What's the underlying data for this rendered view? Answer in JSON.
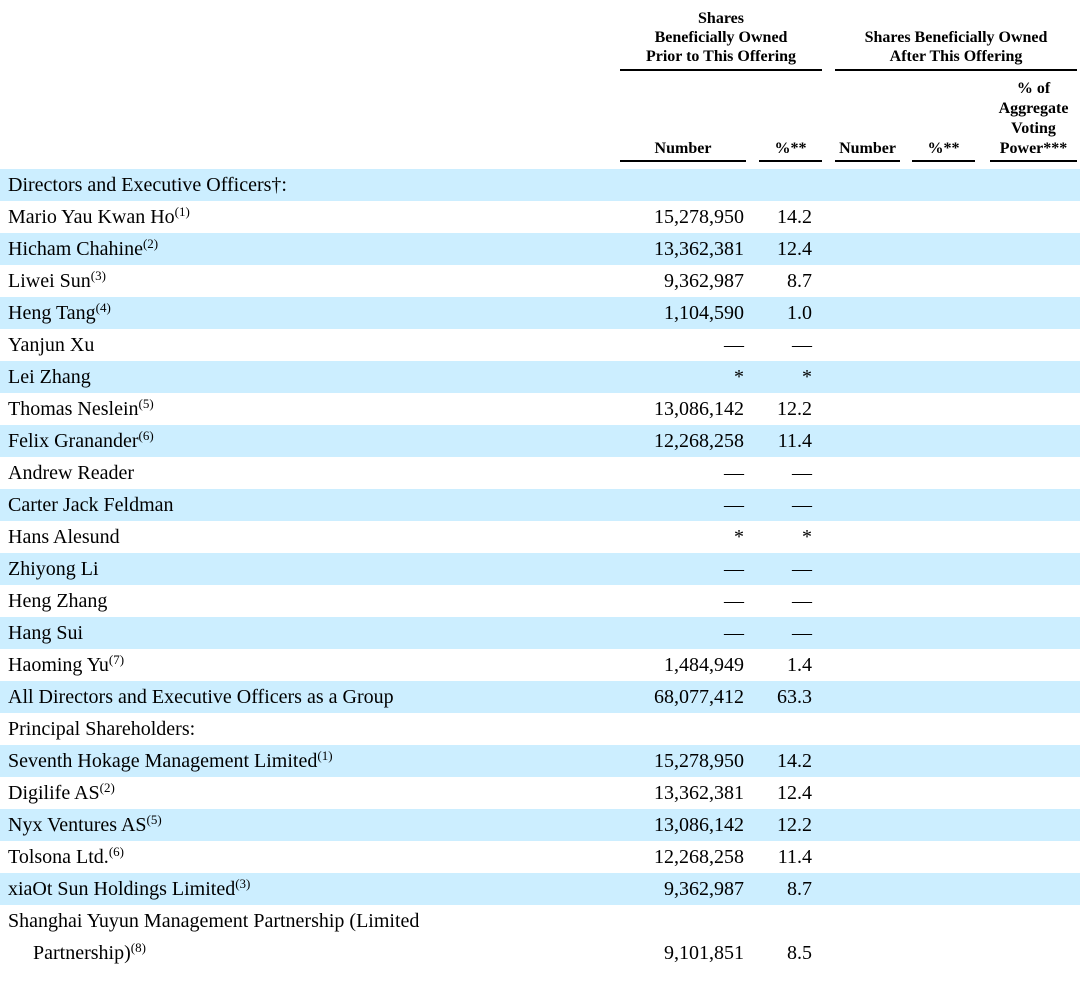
{
  "colors": {
    "row_shade": "#cceeff",
    "rule": "#000000",
    "text": "#000000"
  },
  "header": {
    "prior_group": "Shares\nBeneficially Owned\nPrior to This Offering",
    "after_group": "Shares Beneficially Owned\nAfter This Offering",
    "number_label": "Number",
    "percent_label": "%**",
    "voting_label": "% of\nAggregate\nVoting\nPower***"
  },
  "table": {
    "rows": [
      {
        "name": "Directors and Executive Officers†:",
        "sup": "",
        "prior_number": "",
        "prior_percent": "",
        "after_number": "",
        "after_percent": "",
        "voting_power": "",
        "shaded": true,
        "bold": true,
        "hang": false
      },
      {
        "name": "Mario Yau Kwan Ho",
        "sup": "(1)",
        "prior_number": "15,278,950",
        "prior_percent": "14.2",
        "after_number": "",
        "after_percent": "",
        "voting_power": "",
        "shaded": false,
        "bold": false,
        "hang": false
      },
      {
        "name": "Hicham Chahine",
        "sup": "(2)",
        "prior_number": "13,362,381",
        "prior_percent": "12.4",
        "after_number": "",
        "after_percent": "",
        "voting_power": "",
        "shaded": true,
        "bold": false,
        "hang": false
      },
      {
        "name": "Liwei Sun",
        "sup": "(3)",
        "prior_number": "9,362,987",
        "prior_percent": "8.7",
        "after_number": "",
        "after_percent": "",
        "voting_power": "",
        "shaded": false,
        "bold": false,
        "hang": false
      },
      {
        "name": "Heng Tang",
        "sup": "(4)",
        "prior_number": "1,104,590",
        "prior_percent": "1.0",
        "after_number": "",
        "after_percent": "",
        "voting_power": "",
        "shaded": true,
        "bold": false,
        "hang": false
      },
      {
        "name": "Yanjun Xu",
        "sup": "",
        "prior_number": "—",
        "prior_percent": "—",
        "after_number": "",
        "after_percent": "",
        "voting_power": "",
        "shaded": false,
        "bold": false,
        "hang": false
      },
      {
        "name": "Lei Zhang",
        "sup": "",
        "prior_number": "*",
        "prior_percent": "*",
        "after_number": "",
        "after_percent": "",
        "voting_power": "",
        "shaded": true,
        "bold": false,
        "hang": false
      },
      {
        "name": "Thomas Neslein",
        "sup": "(5)",
        "prior_number": "13,086,142",
        "prior_percent": "12.2",
        "after_number": "",
        "after_percent": "",
        "voting_power": "",
        "shaded": false,
        "bold": false,
        "hang": false
      },
      {
        "name": "Felix Granander",
        "sup": "(6)",
        "prior_number": "12,268,258",
        "prior_percent": "11.4",
        "after_number": "",
        "after_percent": "",
        "voting_power": "",
        "shaded": true,
        "bold": false,
        "hang": false
      },
      {
        "name": "Andrew Reader",
        "sup": "",
        "prior_number": "—",
        "prior_percent": "—",
        "after_number": "",
        "after_percent": "",
        "voting_power": "",
        "shaded": false,
        "bold": false,
        "hang": false
      },
      {
        "name": "Carter Jack Feldman",
        "sup": "",
        "prior_number": "—",
        "prior_percent": "—",
        "after_number": "",
        "after_percent": "",
        "voting_power": "",
        "shaded": true,
        "bold": false,
        "hang": false
      },
      {
        "name": "Hans Alesund",
        "sup": "",
        "prior_number": "*",
        "prior_percent": "*",
        "after_number": "",
        "after_percent": "",
        "voting_power": "",
        "shaded": false,
        "bold": false,
        "hang": false
      },
      {
        "name": "Zhiyong Li",
        "sup": "",
        "prior_number": "—",
        "prior_percent": "—",
        "after_number": "",
        "after_percent": "",
        "voting_power": "",
        "shaded": true,
        "bold": false,
        "hang": false
      },
      {
        "name": "Heng Zhang",
        "sup": "",
        "prior_number": "—",
        "prior_percent": "—",
        "after_number": "",
        "after_percent": "",
        "voting_power": "",
        "shaded": false,
        "bold": false,
        "hang": false
      },
      {
        "name": "Hang Sui",
        "sup": "",
        "prior_number": "—",
        "prior_percent": "—",
        "after_number": "",
        "after_percent": "",
        "voting_power": "",
        "shaded": true,
        "bold": false,
        "hang": false
      },
      {
        "name": "Haoming Yu",
        "sup": "(7)",
        "prior_number": "1,484,949",
        "prior_percent": "1.4",
        "after_number": "",
        "after_percent": "",
        "voting_power": "",
        "shaded": false,
        "bold": false,
        "hang": false
      },
      {
        "name": "All Directors and Executive Officers as a Group",
        "sup": "",
        "prior_number": "68,077,412",
        "prior_percent": "63.3",
        "after_number": "",
        "after_percent": "",
        "voting_power": "",
        "shaded": true,
        "bold": true,
        "hang": false
      },
      {
        "name": "Principal Shareholders:",
        "sup": "",
        "prior_number": "",
        "prior_percent": "",
        "after_number": "",
        "after_percent": "",
        "voting_power": "",
        "shaded": false,
        "bold": true,
        "hang": false
      },
      {
        "name": "Seventh Hokage Management Limited",
        "sup": "(1)",
        "prior_number": "15,278,950",
        "prior_percent": "14.2",
        "after_number": "",
        "after_percent": "",
        "voting_power": "",
        "shaded": true,
        "bold": false,
        "hang": false
      },
      {
        "name": "Digilife AS",
        "sup": "(2)",
        "prior_number": "13,362,381",
        "prior_percent": "12.4",
        "after_number": "",
        "after_percent": "",
        "voting_power": "",
        "shaded": false,
        "bold": false,
        "hang": false
      },
      {
        "name": "Nyx Ventures AS",
        "sup": "(5)",
        "prior_number": "13,086,142",
        "prior_percent": "12.2",
        "after_number": "",
        "after_percent": "",
        "voting_power": "",
        "shaded": true,
        "bold": false,
        "hang": false
      },
      {
        "name": "Tolsona Ltd.",
        "sup": "(6)",
        "prior_number": "12,268,258",
        "prior_percent": "11.4",
        "after_number": "",
        "after_percent": "",
        "voting_power": "",
        "shaded": false,
        "bold": false,
        "hang": false
      },
      {
        "name": "xiaOt Sun Holdings Limited",
        "sup": "(3)",
        "prior_number": "9,362,987",
        "prior_percent": "8.7",
        "after_number": "",
        "after_percent": "",
        "voting_power": "",
        "shaded": true,
        "bold": false,
        "hang": false
      },
      {
        "name": "Shanghai Yuyun Management Partnership (Limited\nPartnership)",
        "sup": "(8)",
        "prior_number": "9,101,851",
        "prior_percent": "8.5",
        "after_number": "",
        "after_percent": "",
        "voting_power": "",
        "shaded": false,
        "bold": false,
        "hang": true
      }
    ]
  }
}
